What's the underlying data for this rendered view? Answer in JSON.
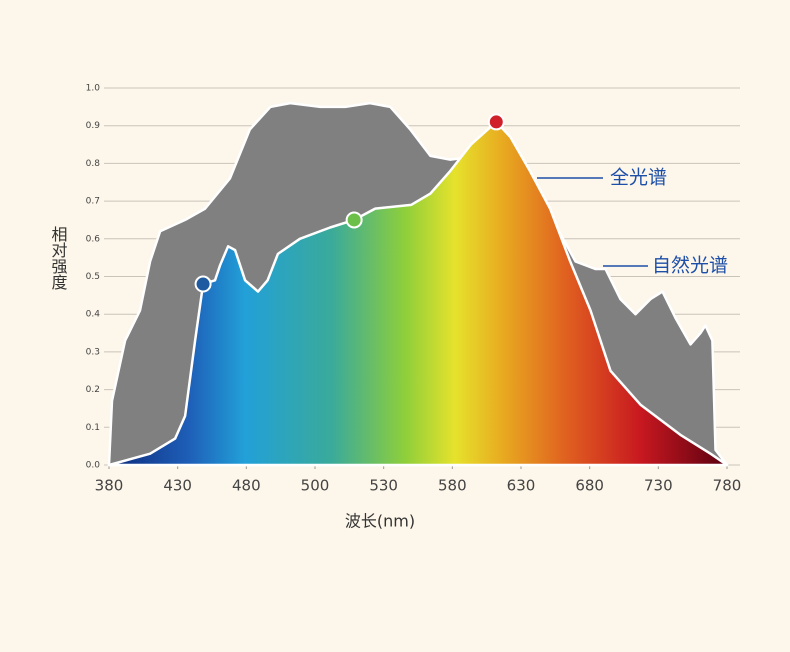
{
  "chart_data": {
    "type": "area",
    "x_label": "波长(nm)",
    "y_label": "相对强度",
    "xlim": [
      380,
      780
    ],
    "xticks": [
      380,
      430,
      480,
      500,
      530,
      580,
      630,
      680,
      730,
      780
    ],
    "ylim": [
      0,
      1
    ],
    "yticks": [
      {
        "value": 0,
        "label": "0.0"
      },
      0.1,
      0.2,
      0.3,
      0.4,
      0.5,
      0.6,
      0.7,
      0.8,
      0.9,
      {
        "value": 1,
        "label": "1.0"
      }
    ],
    "grid": true,
    "series": [
      {
        "name": "自然光谱",
        "color": "#808080",
        "x": [
          380,
          382.2,
          391.7,
          402.6,
          409.9,
          417.2,
          435.4,
          450,
          468,
          481,
          487,
          492.8,
          502.3,
          513.2,
          524,
          534.8,
          549.4,
          564,
          578.5,
          600,
          615,
          629.6,
          651.5,
          669.7,
          684.2,
          691.5,
          702.4,
          713.4,
          724.3,
          733,
          742.5,
          753.4,
          760.7,
          764.3,
          769.4,
          771.6,
          780
        ],
        "values": [
          0,
          0.17,
          0.33,
          0.41,
          0.54,
          0.62,
          0.65,
          0.68,
          0.76,
          0.89,
          0.95,
          0.96,
          0.95,
          0.95,
          0.96,
          0.95,
          0.89,
          0.82,
          0.81,
          0.82,
          0.77,
          0.72,
          0.66,
          0.54,
          0.52,
          0.52,
          0.44,
          0.4,
          0.44,
          0.46,
          0.39,
          0.32,
          0.35,
          0.37,
          0.33,
          0.04,
          0
        ]
      },
      {
        "name": "全光谱",
        "color": "#1d4fa8",
        "x": [
          380,
          409.9,
          428.1,
          435.4,
          442.7,
          448.5,
          457.2,
          460.9,
          466.7,
          471.8,
          479.1,
          483.4,
          486.2,
          489.2,
          495.6,
          506.6,
          517.1,
          526.3,
          550,
          564,
          578.5,
          593.5,
          612,
          622.3,
          636.5,
          651.2,
          665.8,
          680.6,
          695.2,
          717,
          746,
          768,
          780
        ],
        "values": [
          0,
          0.03,
          0.07,
          0.13,
          0.33,
          0.48,
          0.49,
          0.53,
          0.58,
          0.57,
          0.49,
          0.46,
          0.49,
          0.56,
          0.6,
          0.63,
          0.65,
          0.68,
          0.69,
          0.72,
          0.78,
          0.85,
          0.91,
          0.87,
          0.78,
          0.68,
          0.54,
          0.41,
          0.25,
          0.16,
          0.08,
          0.03,
          0
        ]
      }
    ],
    "highlights": [
      {
        "x": 448.5,
        "y": 0.48,
        "color": "#1d5aa0"
      },
      {
        "x": 517.1,
        "y": 0.65,
        "color": "#6cc04a"
      },
      {
        "x": 612,
        "y": 0.91,
        "color": "#d0202a"
      }
    ]
  }
}
